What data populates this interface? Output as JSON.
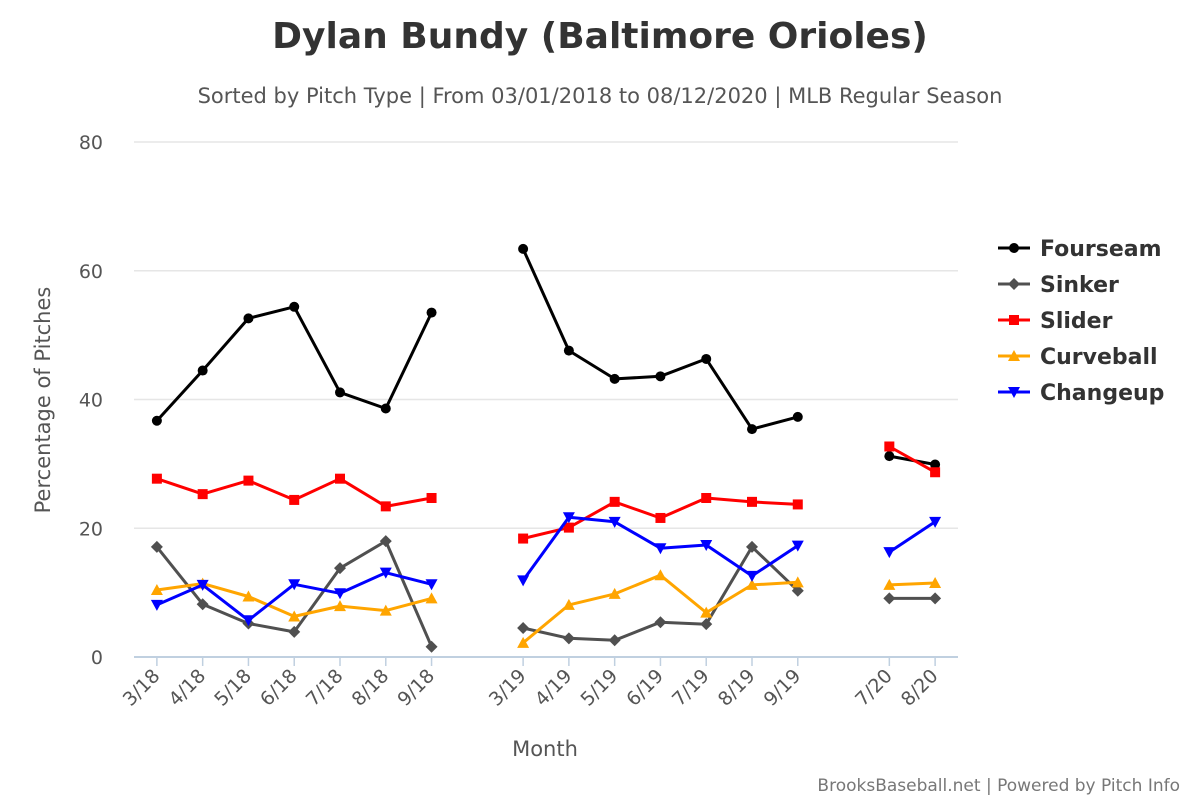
{
  "chart_data": {
    "type": "line",
    "title": "Dylan Bundy (Baltimore Orioles)",
    "subtitle": "Sorted by Pitch Type | From 03/01/2018 to 08/12/2020 | MLB Regular Season",
    "xlabel": "Month",
    "ylabel": "Percentage of Pitches",
    "ylim": [
      0,
      80
    ],
    "yticks": [
      0,
      20,
      40,
      60,
      80
    ],
    "grid": true,
    "legend_position": "right",
    "categories": [
      "3/18",
      "4/18",
      "5/18",
      "6/18",
      "7/18",
      "8/18",
      "9/18",
      "",
      "3/19",
      "4/19",
      "5/19",
      "6/19",
      "7/19",
      "8/19",
      "9/19",
      "",
      "7/20",
      "8/20"
    ],
    "series": [
      {
        "name": "Fourseam",
        "color": "#000000",
        "marker": "circle",
        "values": [
          36.7,
          44.5,
          52.6,
          54.4,
          41.1,
          38.6,
          53.5,
          null,
          63.4,
          47.6,
          43.2,
          43.6,
          46.3,
          35.4,
          37.3,
          null,
          31.2,
          29.9
        ]
      },
      {
        "name": "Sinker",
        "color": "#505050",
        "marker": "diamond",
        "values": [
          17.1,
          8.2,
          5.2,
          3.9,
          13.8,
          18.0,
          1.6,
          null,
          4.5,
          2.9,
          2.6,
          5.4,
          5.1,
          17.1,
          10.3,
          null,
          9.1,
          9.1
        ]
      },
      {
        "name": "Slider",
        "color": "#ff0000",
        "marker": "square",
        "values": [
          27.7,
          25.3,
          27.4,
          24.4,
          27.7,
          23.4,
          24.7,
          null,
          18.4,
          20.1,
          24.1,
          21.6,
          24.7,
          24.1,
          23.7,
          null,
          32.7,
          28.7
        ]
      },
      {
        "name": "Curveball",
        "color": "#ffa500",
        "marker": "triangle-up",
        "values": [
          10.4,
          11.4,
          9.4,
          6.3,
          7.9,
          7.2,
          9.1,
          null,
          2.2,
          8.1,
          9.8,
          12.7,
          6.9,
          11.2,
          11.6,
          null,
          11.2,
          11.5
        ]
      },
      {
        "name": "Changeup",
        "color": "#0000ff",
        "marker": "triangle-down",
        "values": [
          8.1,
          11.2,
          5.7,
          11.3,
          9.9,
          13.1,
          11.3,
          null,
          11.9,
          21.7,
          21.0,
          16.9,
          17.4,
          12.6,
          17.3,
          null,
          16.3,
          21.0
        ]
      }
    ]
  },
  "credits": "BrooksBaseball.net | Powered by Pitch Info"
}
